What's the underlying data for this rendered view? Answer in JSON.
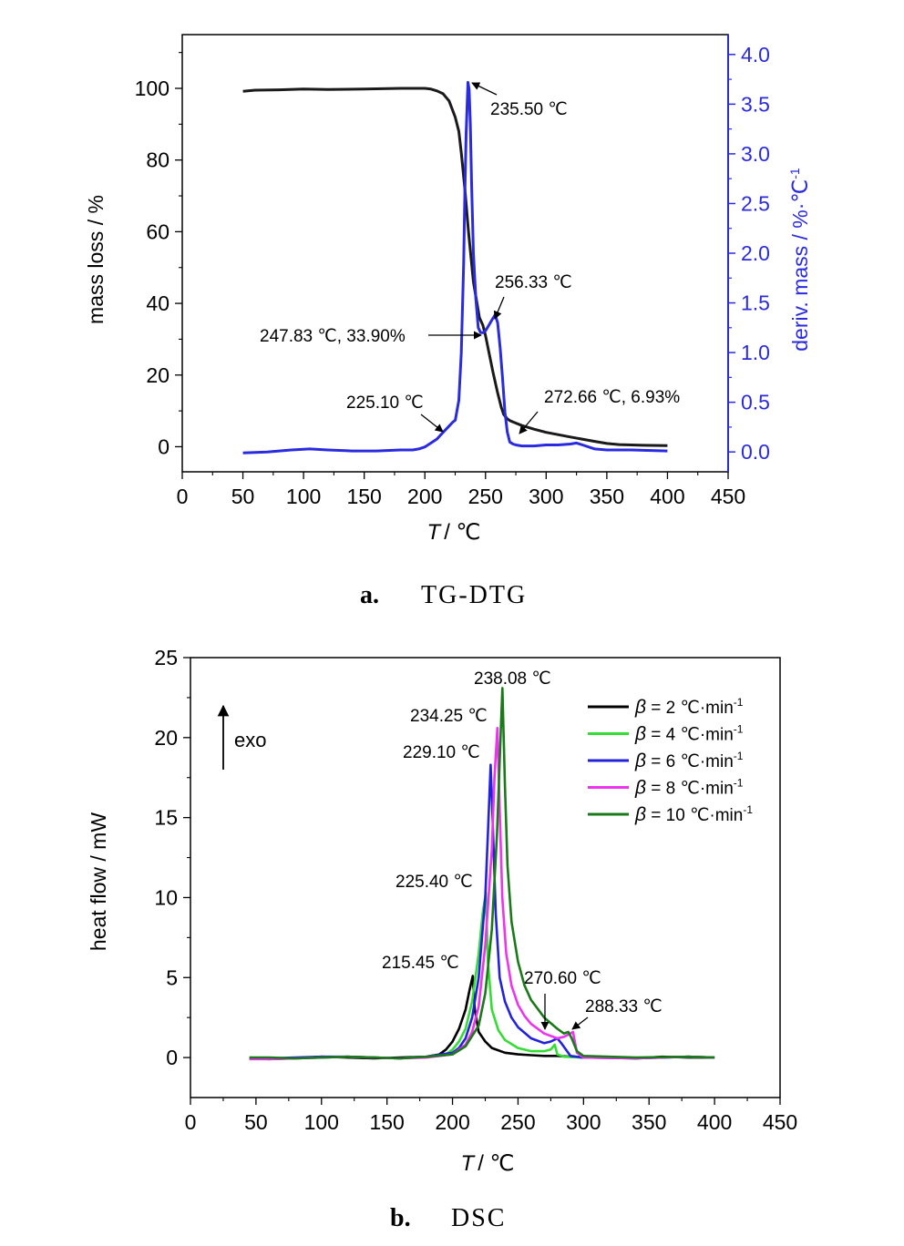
{
  "panels": {
    "a": {
      "letter": "a.",
      "name": "TG-DTG"
    },
    "b": {
      "letter": "b.",
      "name": "DSC"
    }
  },
  "chart_data": [
    {
      "type": "line",
      "panel": "a",
      "xlabel_var": "T",
      "xlabel_unit": "/ ℃",
      "ylabel": "mass loss / %",
      "y2label": "deriv. mass / %·℃",
      "y2label_sup": "-1",
      "xlim": [
        0,
        450
      ],
      "ylim": [
        -7,
        115
      ],
      "y2lim": [
        -0.2,
        4.2
      ],
      "xticks": [
        "0",
        "50",
        "100",
        "150",
        "200",
        "250",
        "300",
        "350",
        "400",
        "450"
      ],
      "yticks": [
        "0",
        "20",
        "40",
        "60",
        "80",
        "100"
      ],
      "y2ticks": [
        "0.0",
        "0.5",
        "1.0",
        "1.5",
        "2.0",
        "2.5",
        "3.0",
        "3.5",
        "4.0"
      ],
      "grid": false,
      "colors": {
        "tg": "#1a1a1a",
        "dtg": "#2a2adf",
        "axis_right": "#2a2adf"
      },
      "series": [
        {
          "axis": "left",
          "x": [
            50,
            60,
            80,
            100,
            120,
            150,
            180,
            200,
            205,
            210,
            215,
            220,
            225,
            228,
            230,
            233,
            236,
            240,
            245,
            247.83,
            250,
            253,
            256,
            260,
            263,
            265,
            268,
            270,
            272.66,
            280,
            290,
            300,
            320,
            340,
            350,
            360,
            380,
            400
          ],
          "values": [
            99.2,
            99.5,
            99.6,
            99.8,
            99.7,
            99.8,
            100,
            100,
            99.8,
            99.3,
            98.5,
            96.5,
            92,
            88,
            82,
            72,
            60,
            46,
            36,
            33.9,
            31,
            26,
            21,
            15,
            11,
            9,
            7.8,
            7.3,
            6.93,
            5.9,
            4.9,
            4,
            2.7,
            1.5,
            0.9,
            0.6,
            0.4,
            0.3
          ]
        },
        {
          "axis": "right",
          "x": [
            50,
            70,
            90,
            105,
            120,
            140,
            160,
            180,
            190,
            195,
            200,
            205,
            210,
            213,
            216,
            220,
            223,
            225.1,
            228,
            230,
            232,
            233,
            234,
            235.5,
            236.5,
            237.5,
            238.5,
            240,
            242,
            244,
            246,
            247.83,
            250,
            253,
            256.33,
            258,
            260,
            262,
            264,
            266,
            268,
            270,
            272.66,
            275,
            280,
            290,
            300,
            310,
            320,
            325,
            330,
            340,
            350,
            370,
            400
          ],
          "values": [
            -0.01,
            0.0,
            0.02,
            0.03,
            0.02,
            0.01,
            0.01,
            0.02,
            0.02,
            0.03,
            0.05,
            0.09,
            0.13,
            0.17,
            0.21,
            0.26,
            0.3,
            0.32,
            0.52,
            1.0,
            1.9,
            2.6,
            3.2,
            3.72,
            3.65,
            3.3,
            2.7,
            2.0,
            1.55,
            1.25,
            1.2,
            1.2,
            1.22,
            1.28,
            1.35,
            1.38,
            1.3,
            1.05,
            0.75,
            0.4,
            0.2,
            0.1,
            0.08,
            0.07,
            0.06,
            0.06,
            0.07,
            0.07,
            0.08,
            0.09,
            0.07,
            0.03,
            0.02,
            0.02,
            0.01
          ]
        }
      ],
      "annotations": [
        {
          "text": "235.50 ℃"
        },
        {
          "text": "256.33 ℃"
        },
        {
          "text": "247.83 ℃, 33.90%"
        },
        {
          "text": "225.10 ℃"
        },
        {
          "text": "272.66 ℃, 6.93%"
        }
      ]
    },
    {
      "type": "line",
      "panel": "b",
      "xlabel_var": "T",
      "xlabel_unit": "/ ℃",
      "ylabel": "heat flow / mW",
      "xlim": [
        0,
        450
      ],
      "ylim": [
        -2.5,
        25
      ],
      "xticks": [
        "0",
        "50",
        "100",
        "150",
        "200",
        "250",
        "300",
        "350",
        "400",
        "450"
      ],
      "yticks": [
        "0",
        "5",
        "10",
        "15",
        "20",
        "25"
      ],
      "grid": false,
      "exo_label": "exo",
      "legend": {
        "position": "top-right"
      },
      "series": [
        {
          "name_beta": "β",
          "name_rest": " = 2 ℃·min",
          "name_sup": "-1",
          "color": "#000000",
          "x": [
            45,
            60,
            80,
            100,
            120,
            140,
            160,
            180,
            190,
            195,
            200,
            205,
            210,
            213,
            215.45,
            217,
            220,
            225,
            230,
            240,
            250,
            260,
            270,
            280,
            290,
            300,
            320,
            340,
            360,
            380,
            400
          ],
          "values": [
            -0.05,
            -0.1,
            -0.05,
            0.05,
            0.0,
            -0.05,
            0.0,
            0.05,
            0.2,
            0.5,
            1.0,
            1.8,
            3.0,
            4.2,
            5.1,
            3.0,
            1.6,
            1.0,
            0.6,
            0.3,
            0.2,
            0.15,
            0.1,
            0.1,
            0.05,
            0.0,
            0.0,
            -0.05,
            0.05,
            0.0,
            0.0
          ]
        },
        {
          "name_beta": "β",
          "name_rest": " = 4 ℃·min",
          "name_sup": "-1",
          "color": "#33dd33",
          "x": [
            45,
            60,
            80,
            100,
            120,
            140,
            160,
            180,
            195,
            200,
            205,
            210,
            215,
            220,
            223,
            225.4,
            227,
            230,
            235,
            240,
            250,
            260,
            270,
            275,
            278,
            280,
            285,
            300,
            340,
            380,
            400
          ],
          "values": [
            0.0,
            -0.05,
            -0.05,
            0.0,
            0.05,
            0.0,
            -0.05,
            0.05,
            0.2,
            0.5,
            1.0,
            1.8,
            3.5,
            6.5,
            9.0,
            10.3,
            6.0,
            3.0,
            1.7,
            1.1,
            0.6,
            0.4,
            0.4,
            0.5,
            0.8,
            0.2,
            0.05,
            0.0,
            -0.05,
            0.05,
            0.0
          ]
        },
        {
          "name_beta": "β",
          "name_rest": " = 6 ℃·min",
          "name_sup": "-1",
          "color": "#2222dd",
          "x": [
            45,
            60,
            80,
            100,
            120,
            140,
            160,
            180,
            200,
            205,
            210,
            215,
            220,
            225,
            227,
            229.1,
            231,
            233,
            236,
            240,
            245,
            250,
            260,
            270,
            275,
            280,
            283,
            290,
            300,
            340,
            380,
            400
          ],
          "values": [
            -0.05,
            -0.05,
            0.0,
            0.05,
            0.05,
            0.0,
            -0.05,
            0.05,
            0.3,
            0.6,
            1.2,
            2.5,
            5.0,
            10.0,
            14.0,
            18.3,
            14.0,
            9.0,
            5.0,
            3.5,
            2.5,
            1.9,
            1.2,
            0.9,
            1.0,
            1.2,
            0.9,
            0.1,
            0.0,
            -0.05,
            0.05,
            0.0
          ]
        },
        {
          "name_beta": "β",
          "name_rest": " = 8 ℃·min",
          "name_sup": "-1",
          "color": "#ee33ee",
          "x": [
            45,
            60,
            80,
            100,
            120,
            140,
            160,
            180,
            200,
            210,
            215,
            220,
            225,
            230,
            232,
            234.25,
            236,
            238,
            241,
            245,
            250,
            255,
            260,
            270,
            280,
            285,
            290,
            292,
            295,
            300,
            340,
            380,
            400
          ],
          "values": [
            -0.1,
            -0.1,
            -0.05,
            0.0,
            0.05,
            0.0,
            -0.05,
            0.0,
            0.2,
            0.8,
            1.6,
            3.2,
            7.0,
            13.0,
            17.5,
            20.6,
            15.5,
            10.0,
            6.5,
            4.5,
            3.3,
            2.6,
            2.1,
            1.5,
            1.2,
            1.3,
            1.5,
            1.6,
            0.3,
            0.0,
            -0.05,
            0.05,
            0.0
          ]
        },
        {
          "name_beta": "β",
          "name_rest": " = 10 ℃·min",
          "name_sup": "-1",
          "color": "#1a7a1a",
          "x": [
            45,
            60,
            80,
            100,
            120,
            140,
            160,
            180,
            200,
            210,
            220,
            225,
            230,
            234,
            236,
            238.08,
            240,
            242,
            245,
            250,
            255,
            260,
            270,
            280,
            285,
            288.33,
            291,
            295,
            300,
            340,
            380,
            400
          ],
          "values": [
            0.0,
            0.0,
            -0.05,
            0.0,
            0.05,
            0.0,
            -0.05,
            0.05,
            0.2,
            0.7,
            2.0,
            4.0,
            8.0,
            14.0,
            18.5,
            23.1,
            17.0,
            12.0,
            8.5,
            6.0,
            4.5,
            3.6,
            2.5,
            1.8,
            1.5,
            1.6,
            1.2,
            0.4,
            0.1,
            0.0,
            0.05,
            0.0
          ]
        }
      ],
      "annotations": [
        {
          "text": "238.08 ℃"
        },
        {
          "text": "234.25 ℃"
        },
        {
          "text": "229.10 ℃"
        },
        {
          "text": "225.40 ℃"
        },
        {
          "text": "215.45 ℃"
        },
        {
          "text": "270.60 ℃"
        },
        {
          "text": "288.33 ℃"
        }
      ]
    }
  ]
}
